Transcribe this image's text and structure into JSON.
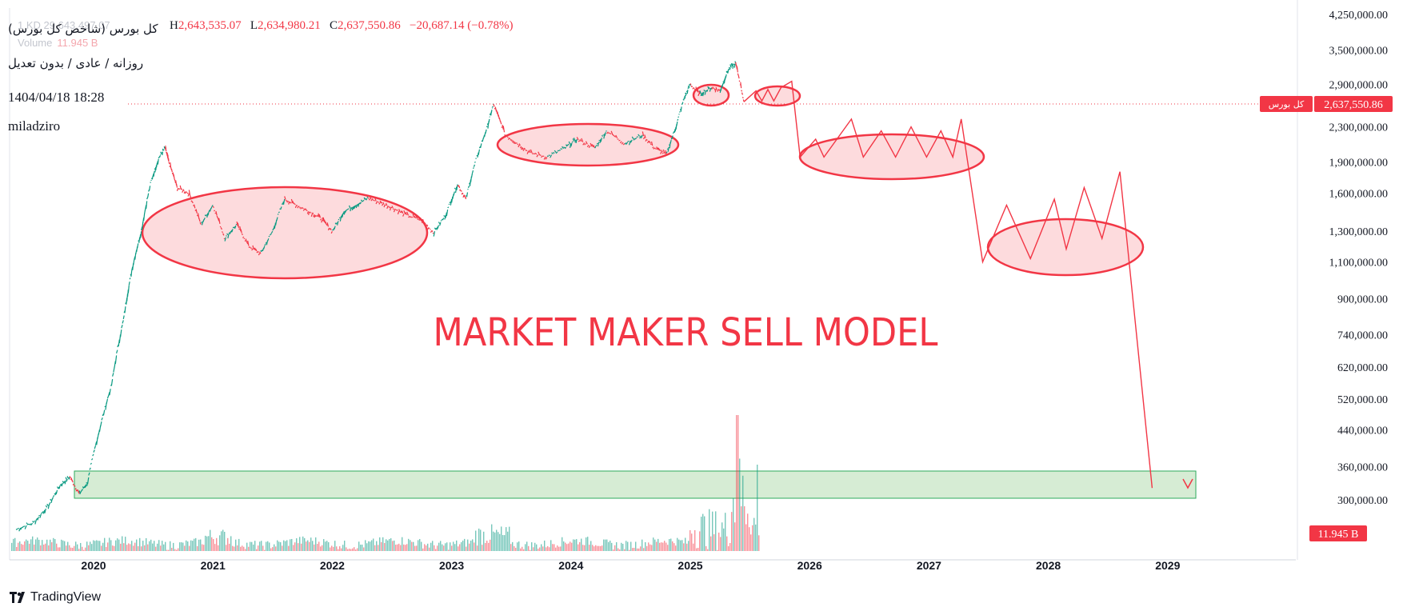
{
  "header": {
    "symbol_name": "کل بورس (شاخص کل بورس)",
    "ohlc": [
      {
        "label": "H",
        "value": "2,643,535.07"
      },
      {
        "label": "L",
        "value": "2,634,980.21"
      },
      {
        "label": "C",
        "value": "2,637,550.86"
      }
    ],
    "change": "−20,687.14 (−0.78%)",
    "subtitle": "روزانه / عادی / بدون تعدیل",
    "timestamp": "1404/04/18 18:28",
    "author": "miladziro",
    "ghost_text": "1    KD    29,643,497.07",
    "volume_label": "Volume",
    "volume_value": "11.945 B"
  },
  "annotation_text": "MARKET MAKER SELL MODEL",
  "branding": "TradingView",
  "colors": {
    "annotation_red": "#f23645",
    "candle_up": "#089981",
    "candle_down": "#f23645",
    "zone_green": "#d6ecd4",
    "zone_border": "#2eaa5c"
  },
  "chart_data": {
    "type": "line",
    "scale": "log",
    "x_ticks": [
      "2020",
      "2021",
      "2022",
      "2023",
      "2024",
      "2025",
      "2026",
      "2027",
      "2028",
      "2029"
    ],
    "y_ticks": [
      "4,250,000.00",
      "3,500,000.00",
      "2,900,000.00",
      "2,300,000.00",
      "1,900,000.00",
      "1,600,000.00",
      "1,300,000.00",
      "1,100,000.00",
      "900,000.00",
      "740,000.00",
      "620,000.00",
      "520,000.00",
      "440,000.00",
      "360,000.00",
      "300,000.00"
    ],
    "y_range": [
      250000,
      4250000
    ],
    "last_price_label": "2,637,550.86",
    "last_price_name": "کل بورس",
    "volume_badge": "11.945 B",
    "series": [
      {
        "points": [
          [
            2019.35,
            255000
          ],
          [
            2019.5,
            265000
          ],
          [
            2019.62,
            290000
          ],
          [
            2019.72,
            325000
          ],
          [
            2019.8,
            340000
          ],
          [
            2019.88,
            310000
          ],
          [
            2019.95,
            330000
          ],
          [
            2020.05,
            440000
          ],
          [
            2020.15,
            560000
          ],
          [
            2020.25,
            800000
          ],
          [
            2020.32,
            1050000
          ],
          [
            2020.4,
            1300000
          ],
          [
            2020.48,
            1700000
          ],
          [
            2020.55,
            1950000
          ],
          [
            2020.6,
            2050000
          ],
          [
            2020.63,
            1900000
          ],
          [
            2020.7,
            1650000
          ],
          [
            2020.8,
            1600000
          ],
          [
            2020.9,
            1350000
          ],
          [
            2021.0,
            1500000
          ],
          [
            2021.1,
            1250000
          ],
          [
            2021.2,
            1350000
          ],
          [
            2021.3,
            1200000
          ],
          [
            2021.4,
            1150000
          ],
          [
            2021.5,
            1300000
          ],
          [
            2021.6,
            1550000
          ],
          [
            2021.7,
            1500000
          ],
          [
            2021.8,
            1450000
          ],
          [
            2021.9,
            1400000
          ],
          [
            2022.0,
            1300000
          ],
          [
            2022.1,
            1450000
          ],
          [
            2022.2,
            1500000
          ],
          [
            2022.3,
            1560000
          ],
          [
            2022.4,
            1520000
          ],
          [
            2022.5,
            1480000
          ],
          [
            2022.6,
            1430000
          ],
          [
            2022.75,
            1380000
          ],
          [
            2022.85,
            1290000
          ],
          [
            2022.95,
            1420000
          ],
          [
            2023.05,
            1680000
          ],
          [
            2023.12,
            1550000
          ],
          [
            2023.2,
            1900000
          ],
          [
            2023.3,
            2300000
          ],
          [
            2023.35,
            2600000
          ],
          [
            2023.45,
            2200000
          ],
          [
            2023.55,
            2100000
          ],
          [
            2023.65,
            2000000
          ],
          [
            2023.8,
            1950000
          ],
          [
            2023.95,
            2050000
          ],
          [
            2024.05,
            2150000
          ],
          [
            2024.2,
            2050000
          ],
          [
            2024.3,
            2250000
          ],
          [
            2024.45,
            2100000
          ],
          [
            2024.6,
            2200000
          ],
          [
            2024.7,
            2050000
          ],
          [
            2024.8,
            1980000
          ],
          [
            2024.88,
            2300000
          ],
          [
            2024.95,
            2700000
          ],
          [
            2025.0,
            2900000
          ],
          [
            2025.08,
            2750000
          ],
          [
            2025.18,
            2850000
          ],
          [
            2025.25,
            2800000
          ],
          [
            2025.32,
            3150000
          ],
          [
            2025.38,
            3250000
          ],
          [
            2025.45,
            2637550
          ]
        ]
      },
      {
        "points": [
          [
            2025.45,
            2637550
          ],
          [
            2025.55,
            2800000
          ],
          [
            2025.6,
            2650000
          ],
          [
            2025.65,
            2820000
          ],
          [
            2025.7,
            2650000
          ],
          [
            2025.76,
            2850000
          ],
          [
            2025.85,
            2950000
          ],
          [
            2025.92,
            1950000
          ],
          [
            2026.05,
            2150000
          ],
          [
            2026.12,
            1950000
          ],
          [
            2026.35,
            2400000
          ],
          [
            2026.45,
            1950000
          ],
          [
            2026.6,
            2250000
          ],
          [
            2026.72,
            1950000
          ],
          [
            2026.85,
            2300000
          ],
          [
            2026.98,
            1950000
          ],
          [
            2027.1,
            2250000
          ],
          [
            2027.2,
            1950000
          ],
          [
            2027.27,
            2400000
          ],
          [
            2027.45,
            1100000
          ],
          [
            2027.65,
            1500000
          ],
          [
            2027.85,
            1120000
          ],
          [
            2028.05,
            1550000
          ],
          [
            2028.15,
            1180000
          ],
          [
            2028.3,
            1650000
          ],
          [
            2028.45,
            1250000
          ],
          [
            2028.6,
            1800000
          ],
          [
            2028.87,
            320000
          ]
        ]
      }
    ]
  }
}
